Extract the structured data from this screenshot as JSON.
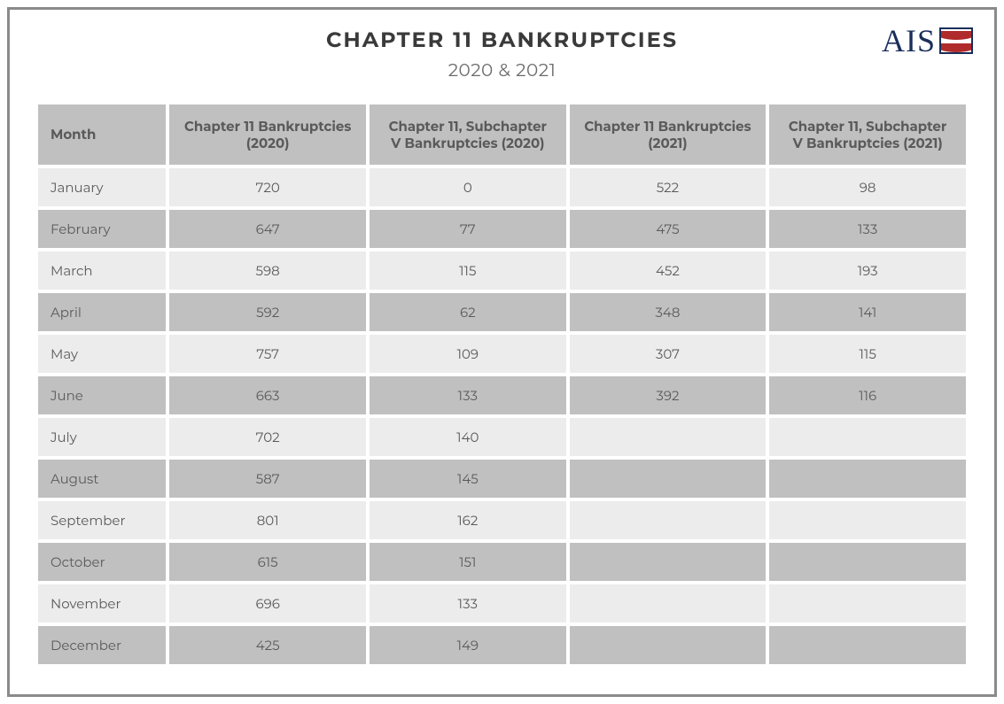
{
  "logo": {
    "text": "AIS"
  },
  "title": "CHAPTER 11 BANKRUPTCIES",
  "subtitle": "2020 & 2021",
  "colors": {
    "frame_border": "#8a8a8a",
    "title_color": "#3a3a3a",
    "subtitle_color": "#6a6a6a",
    "text_color": "#5a5a5a",
    "header_bg": "#c0c0c0",
    "row_odd_bg": "#ececec",
    "row_even_bg": "#c0c0c0",
    "logo_text_color": "#1a2e5a",
    "logo_stripe_color": "#b02b2b",
    "background": "#ffffff"
  },
  "table": {
    "columns": [
      "Month",
      "Chapter 11 Bankruptcies (2020)",
      "Chapter 11, Subchapter V Bankruptcies (2020)",
      "Chapter 11 Bankruptcies (2021)",
      "Chapter 11, Subchapter V Bankruptcies (2021)"
    ],
    "rows": [
      {
        "month": "January",
        "c11_2020": "720",
        "sub5_2020": "0",
        "c11_2021": "522",
        "sub5_2021": "98"
      },
      {
        "month": "February",
        "c11_2020": "647",
        "sub5_2020": "77",
        "c11_2021": "475",
        "sub5_2021": "133"
      },
      {
        "month": "March",
        "c11_2020": "598",
        "sub5_2020": "115",
        "c11_2021": "452",
        "sub5_2021": "193"
      },
      {
        "month": "April",
        "c11_2020": "592",
        "sub5_2020": "62",
        "c11_2021": "348",
        "sub5_2021": "141"
      },
      {
        "month": "May",
        "c11_2020": "757",
        "sub5_2020": "109",
        "c11_2021": "307",
        "sub5_2021": "115"
      },
      {
        "month": "June",
        "c11_2020": "663",
        "sub5_2020": "133",
        "c11_2021": "392",
        "sub5_2021": "116"
      },
      {
        "month": "July",
        "c11_2020": "702",
        "sub5_2020": "140",
        "c11_2021": "",
        "sub5_2021": ""
      },
      {
        "month": "August",
        "c11_2020": "587",
        "sub5_2020": "145",
        "c11_2021": "",
        "sub5_2021": ""
      },
      {
        "month": "September",
        "c11_2020": "801",
        "sub5_2020": "162",
        "c11_2021": "",
        "sub5_2021": ""
      },
      {
        "month": "October",
        "c11_2020": "615",
        "sub5_2020": "151",
        "c11_2021": "",
        "sub5_2021": ""
      },
      {
        "month": "November",
        "c11_2020": "696",
        "sub5_2020": "133",
        "c11_2021": "",
        "sub5_2021": ""
      },
      {
        "month": "December",
        "c11_2020": "425",
        "sub5_2020": "149",
        "c11_2021": "",
        "sub5_2021": ""
      }
    ]
  }
}
